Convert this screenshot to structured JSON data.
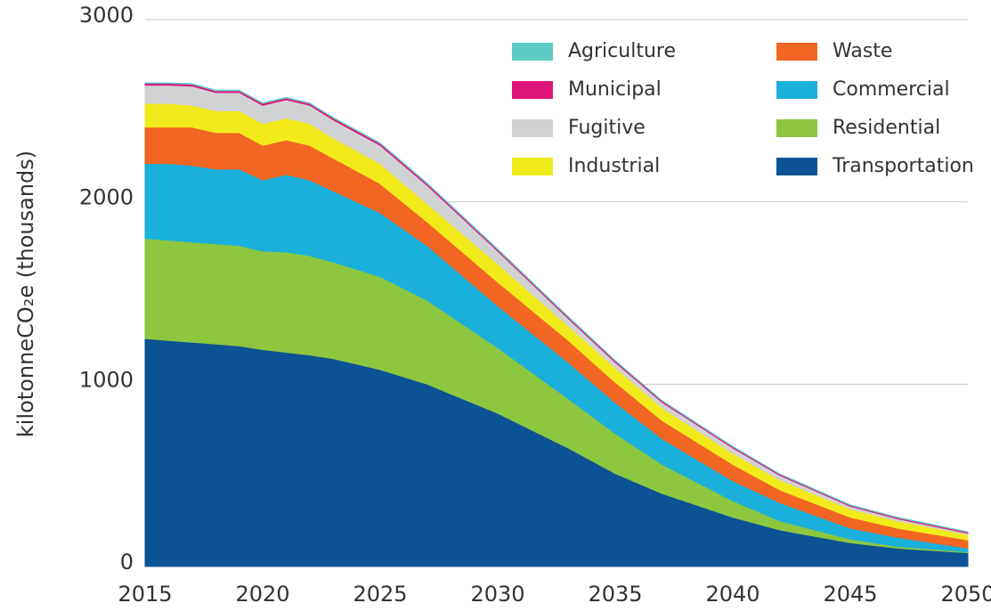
{
  "chart_data": {
    "type": "stacked_area",
    "ylabel": "kilotonneCO₂e (thousands)",
    "x": [
      2015,
      2016,
      2017,
      2018,
      2019,
      2020,
      2021,
      2022,
      2023,
      2024,
      2025,
      2027,
      2030,
      2033,
      2035,
      2037,
      2040,
      2042,
      2045,
      2047,
      2050
    ],
    "series": [
      {
        "name": "Transportation",
        "color": "#0b5394",
        "values": [
          1250,
          1240,
          1230,
          1220,
          1210,
          1190,
          1175,
          1160,
          1140,
          1110,
          1080,
          1000,
          840,
          650,
          510,
          400,
          270,
          200,
          130,
          100,
          75
        ]
      },
      {
        "name": "Residential",
        "color": "#8dc63f",
        "values": [
          550,
          550,
          550,
          550,
          550,
          540,
          550,
          545,
          530,
          520,
          510,
          460,
          360,
          270,
          220,
          160,
          90,
          50,
          20,
          10,
          5
        ]
      },
      {
        "name": "Commercial",
        "color": "#1ab0dc",
        "values": [
          410,
          420,
          420,
          410,
          420,
          390,
          425,
          415,
          390,
          370,
          350,
          300,
          230,
          200,
          170,
          140,
          110,
          100,
          60,
          50,
          20
        ]
      },
      {
        "name": "Waste",
        "color": "#f26522",
        "values": [
          200,
          200,
          210,
          200,
          200,
          190,
          190,
          190,
          180,
          170,
          160,
          130,
          130,
          120,
          110,
          100,
          90,
          70,
          60,
          50,
          45
        ]
      },
      {
        "name": "Industrial",
        "color": "#f2eb1b",
        "values": [
          130,
          130,
          120,
          120,
          120,
          120,
          120,
          120,
          110,
          110,
          110,
          100,
          100,
          80,
          80,
          70,
          60,
          55,
          45,
          40,
          30
        ]
      },
      {
        "name": "Fugitive",
        "color": "#d1d2d4",
        "values": [
          100,
          100,
          105,
          100,
          100,
          100,
          100,
          100,
          100,
          100,
          100,
          100,
          70,
          40,
          30,
          30,
          30,
          25,
          15,
          12,
          7
        ]
      },
      {
        "name": "Municipal",
        "color": "#e0157a",
        "values": [
          10,
          10,
          10,
          10,
          10,
          10,
          10,
          10,
          10,
          10,
          10,
          10,
          8,
          8,
          8,
          7,
          7,
          6,
          6,
          6,
          6
        ]
      },
      {
        "name": "Agriculture",
        "color": "#5ecac4",
        "values": [
          3,
          3,
          3,
          3,
          3,
          3,
          3,
          3,
          3,
          3,
          3,
          3,
          3,
          3,
          2,
          2,
          2,
          2,
          2,
          2,
          2
        ]
      }
    ],
    "xlim": [
      2015,
      2050
    ],
    "xticks": [
      2015,
      2020,
      2025,
      2030,
      2035,
      2040,
      2045,
      2050
    ],
    "ylim": [
      0,
      3000
    ],
    "yticks": [
      0,
      1000,
      2000,
      3000
    ],
    "grid": true
  }
}
